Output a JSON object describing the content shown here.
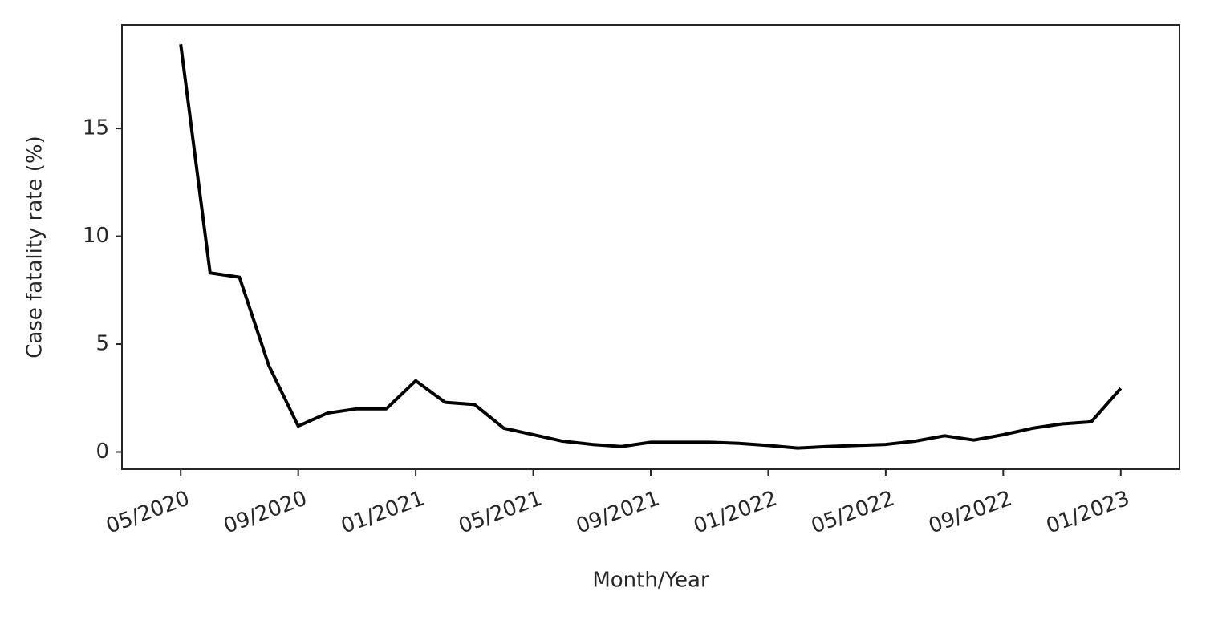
{
  "chart_data": {
    "type": "line",
    "x_label": "Month/Year",
    "y_label": "Case fatality rate (%)",
    "x": [
      "2020-05",
      "2020-06",
      "2020-07",
      "2020-08",
      "2020-09",
      "2020-10",
      "2020-11",
      "2020-12",
      "2021-01",
      "2021-02",
      "2021-03",
      "2021-04",
      "2021-05",
      "2021-06",
      "2021-07",
      "2021-08",
      "2021-09",
      "2021-10",
      "2021-11",
      "2021-12",
      "2022-01",
      "2022-02",
      "2022-03",
      "2022-04",
      "2022-05",
      "2022-06",
      "2022-07",
      "2022-08",
      "2022-09",
      "2022-10",
      "2022-11",
      "2022-12",
      "2023-01"
    ],
    "series": [
      {
        "color": "#000000",
        "values": [
          18.9,
          8.3,
          8.1,
          4.0,
          1.2,
          1.8,
          2.0,
          2.0,
          3.3,
          2.3,
          2.2,
          1.1,
          0.8,
          0.5,
          0.35,
          0.25,
          0.45,
          0.45,
          0.45,
          0.4,
          0.3,
          0.18,
          0.25,
          0.3,
          0.35,
          0.5,
          0.75,
          0.55,
          0.8,
          1.1,
          1.3,
          1.4,
          2.95
        ]
      }
    ],
    "xlim": [
      "2020-03",
      "2023-03"
    ],
    "ylim": [
      -0.8,
      19.8
    ],
    "xticks": [
      {
        "value": "2020-05",
        "label": "05/2020"
      },
      {
        "value": "2020-09",
        "label": "09/2020"
      },
      {
        "value": "2021-01",
        "label": "01/2021"
      },
      {
        "value": "2021-05",
        "label": "05/2021"
      },
      {
        "value": "2021-09",
        "label": "09/2021"
      },
      {
        "value": "2022-01",
        "label": "01/2022"
      },
      {
        "value": "2022-05",
        "label": "05/2022"
      },
      {
        "value": "2022-09",
        "label": "09/2022"
      },
      {
        "value": "2023-01",
        "label": "01/2023"
      }
    ],
    "yticks": [
      0,
      5,
      10,
      15
    ],
    "grid": false
  }
}
